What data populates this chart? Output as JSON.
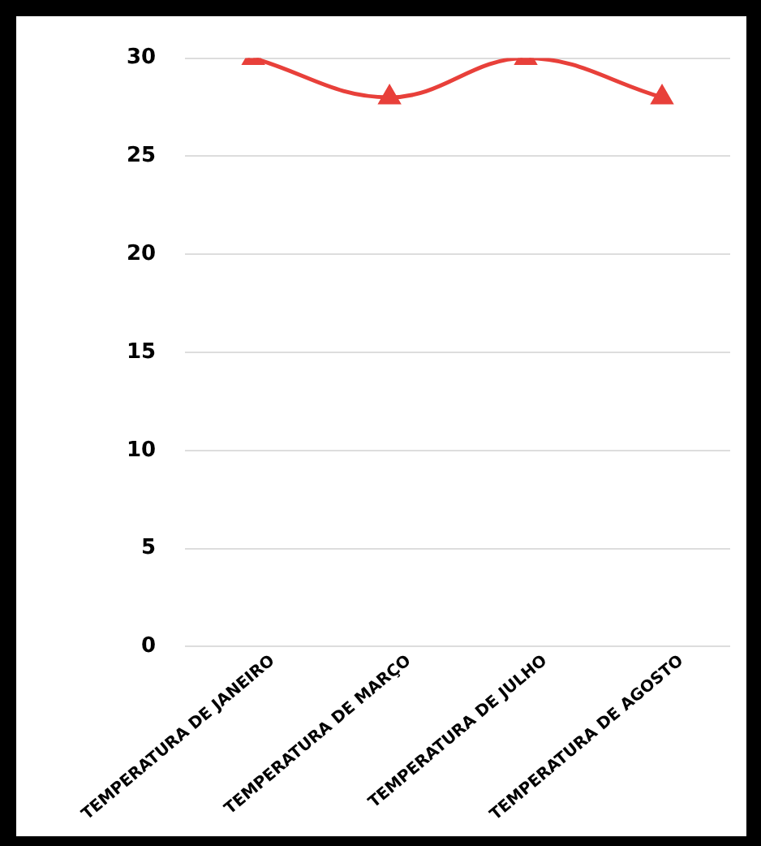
{
  "chart_data": {
    "type": "line",
    "categories": [
      "TEMPERATURA DE JANEIRO",
      "TEMPERATURA DE MARÇO",
      "TEMPERATURA DE JULHO",
      "TEMPERATURA DE AGOSTO"
    ],
    "series": [
      {
        "color": "#e8403a",
        "values": [
          30,
          28,
          30,
          28
        ]
      }
    ],
    "ylim": [
      0,
      30
    ],
    "yticks": [
      0,
      5,
      10,
      15,
      20,
      25,
      30
    ],
    "grid": "y",
    "legend": false,
    "marker": "triangle",
    "line_style": "solid"
  }
}
